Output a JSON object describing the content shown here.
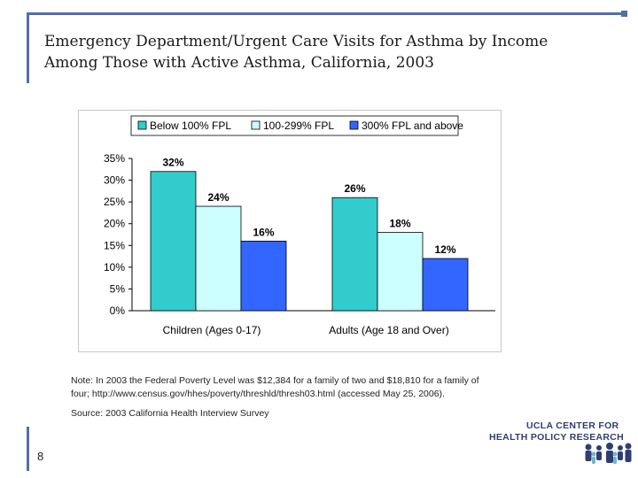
{
  "title": {
    "line1": "Emergency Department/Urgent Care Visits for Asthma by Income",
    "line2": "Among Those with Active Asthma, California, 2003"
  },
  "chart_data": {
    "type": "bar",
    "categories": [
      "Children (Ages 0-17)",
      "Adults (Age 18 and Over)"
    ],
    "series": [
      {
        "name": "Below 100% FPL",
        "values": [
          32,
          26
        ],
        "labels": [
          "32%",
          "26%"
        ],
        "color": "#33cccc"
      },
      {
        "name": "100-299% FPL",
        "values": [
          24,
          18
        ],
        "labels": [
          "24%",
          "18%"
        ],
        "color": "#ccffff"
      },
      {
        "name": "300% FPL and above",
        "values": [
          16,
          12
        ],
        "labels": [
          "16%",
          "12%"
        ],
        "color": "#3366ff"
      }
    ],
    "ylim": [
      0,
      35
    ],
    "yticks": [
      0,
      5,
      10,
      15,
      20,
      25,
      30,
      35
    ],
    "ytick_labels": [
      "0%",
      "5%",
      "10%",
      "15%",
      "20%",
      "25%",
      "30%",
      "35%"
    ],
    "grid": false,
    "legend_position": "top"
  },
  "note": {
    "line1": "Note: In 2003 the Federal Poverty Level was $12,384 for a family of two and $18,810 for a family of",
    "line2": "four; http://www.census.gov/hhes/poverty/threshld/thresh03.html (accessed May 25, 2006)."
  },
  "source": "Source: 2003 California Health Interview Survey",
  "page_number": "8",
  "logo": {
    "line1": "UCLA CENTER FOR",
    "line2": "HEALTH POLICY RESEARCH"
  }
}
